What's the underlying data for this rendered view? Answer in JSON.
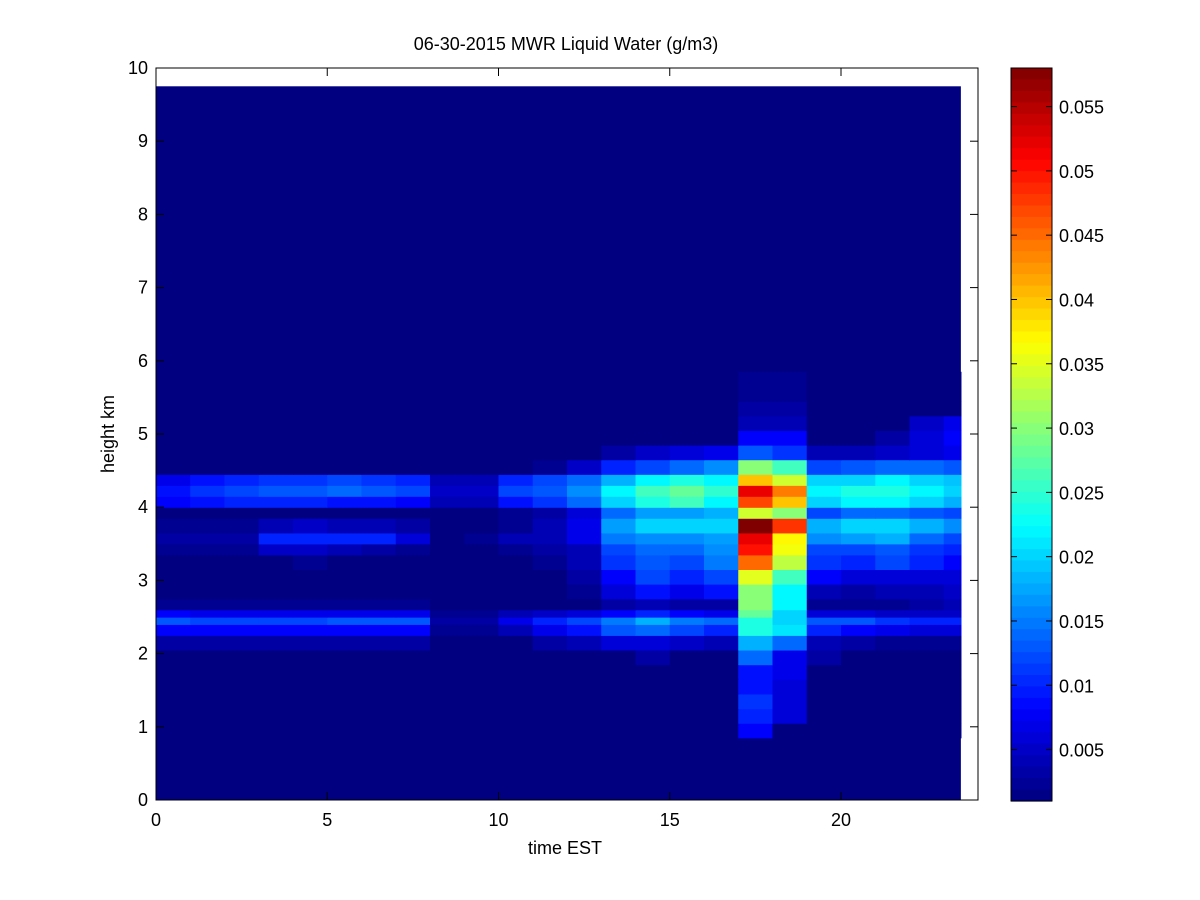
{
  "chart_data": {
    "type": "heatmap",
    "title": "06-30-2015 MWR Liquid Water (g/m3)",
    "xlabel": "time EST",
    "ylabel": "height km",
    "xlim": [
      0,
      24
    ],
    "ylim": [
      0,
      10
    ],
    "xticks": [
      0,
      5,
      10,
      15,
      20
    ],
    "yticks": [
      0,
      1,
      2,
      3,
      4,
      5,
      6,
      7,
      8,
      9,
      10
    ],
    "data_extent": {
      "x": [
        0,
        23.5
      ],
      "y": [
        0,
        9.75
      ]
    },
    "colorbar": {
      "colormap": "jet",
      "range": [
        0.001,
        0.058
      ],
      "ticks": [
        "0.005",
        "0.01",
        "0.015",
        "0.02",
        "0.025",
        "0.03",
        "0.035",
        "0.04",
        "0.045",
        "0.05",
        "0.055"
      ]
    },
    "background_value": 0.001,
    "x": [
      0.5,
      1.5,
      2.5,
      3.5,
      4.5,
      5.5,
      6.5,
      7.5,
      8.5,
      9.5,
      10.5,
      11.5,
      12.5,
      13.5,
      14.5,
      15.5,
      16.5,
      17.5,
      18.5,
      19.5,
      20.5,
      21.5,
      22.5,
      23.5
    ],
    "y": [
      0.95,
      1.15,
      1.35,
      1.55,
      1.75,
      1.95,
      2.15,
      2.35,
      2.45,
      2.55,
      2.65,
      2.85,
      3.05,
      3.25,
      3.45,
      3.55,
      3.75,
      3.95,
      4.05,
      4.25,
      4.35,
      4.55,
      4.75,
      4.95,
      5.15,
      5.35,
      5.55,
      5.75
    ],
    "z": [
      [
        0.001,
        0.001,
        0.001,
        0.001,
        0.001,
        0.001,
        0.001,
        0.001,
        0.001,
        0.001,
        0.001,
        0.001,
        0.001,
        0.001,
        0.001,
        0.001,
        0.001,
        0.008,
        0.001,
        0.001,
        0.001,
        0.001,
        0.001,
        0.001
      ],
      [
        0.001,
        0.001,
        0.001,
        0.001,
        0.001,
        0.001,
        0.001,
        0.001,
        0.001,
        0.001,
        0.001,
        0.001,
        0.001,
        0.001,
        0.001,
        0.001,
        0.001,
        0.01,
        0.006,
        0.001,
        0.001,
        0.001,
        0.001,
        0.001
      ],
      [
        0.001,
        0.001,
        0.001,
        0.001,
        0.001,
        0.001,
        0.001,
        0.001,
        0.001,
        0.001,
        0.001,
        0.001,
        0.001,
        0.001,
        0.001,
        0.001,
        0.001,
        0.011,
        0.006,
        0.001,
        0.001,
        0.001,
        0.001,
        0.001
      ],
      [
        0.001,
        0.001,
        0.001,
        0.001,
        0.001,
        0.001,
        0.001,
        0.001,
        0.001,
        0.001,
        0.001,
        0.001,
        0.001,
        0.001,
        0.001,
        0.001,
        0.001,
        0.009,
        0.006,
        0.001,
        0.001,
        0.001,
        0.001,
        0.001
      ],
      [
        0.001,
        0.001,
        0.001,
        0.001,
        0.001,
        0.001,
        0.001,
        0.001,
        0.001,
        0.001,
        0.001,
        0.001,
        0.001,
        0.001,
        0.001,
        0.001,
        0.001,
        0.009,
        0.007,
        0.001,
        0.001,
        0.001,
        0.001,
        0.001
      ],
      [
        0.001,
        0.001,
        0.001,
        0.001,
        0.001,
        0.001,
        0.001,
        0.001,
        0.001,
        0.001,
        0.001,
        0.001,
        0.001,
        0.001,
        0.003,
        0.001,
        0.001,
        0.014,
        0.007,
        0.003,
        0.001,
        0.001,
        0.001,
        0.001
      ],
      [
        0.003,
        0.003,
        0.003,
        0.003,
        0.003,
        0.003,
        0.003,
        0.003,
        0.001,
        0.001,
        0.001,
        0.003,
        0.004,
        0.006,
        0.006,
        0.005,
        0.004,
        0.018,
        0.014,
        0.004,
        0.003,
        0.002,
        0.002,
        0.002
      ],
      [
        0.008,
        0.008,
        0.008,
        0.008,
        0.008,
        0.008,
        0.008,
        0.008,
        0.002,
        0.002,
        0.004,
        0.007,
        0.009,
        0.013,
        0.014,
        0.012,
        0.01,
        0.024,
        0.021,
        0.01,
        0.008,
        0.007,
        0.006,
        0.006
      ],
      [
        0.013,
        0.012,
        0.012,
        0.012,
        0.012,
        0.013,
        0.013,
        0.013,
        0.003,
        0.003,
        0.007,
        0.01,
        0.012,
        0.015,
        0.018,
        0.015,
        0.014,
        0.024,
        0.02,
        0.013,
        0.013,
        0.011,
        0.01,
        0.01
      ],
      [
        0.008,
        0.007,
        0.007,
        0.007,
        0.007,
        0.007,
        0.007,
        0.007,
        0.002,
        0.002,
        0.004,
        0.005,
        0.006,
        0.008,
        0.01,
        0.008,
        0.007,
        0.028,
        0.02,
        0.006,
        0.006,
        0.005,
        0.005,
        0.005
      ],
      [
        0.002,
        0.002,
        0.002,
        0.002,
        0.002,
        0.002,
        0.002,
        0.002,
        0.001,
        0.001,
        0.001,
        0.001,
        0.001,
        0.003,
        0.004,
        0.003,
        0.003,
        0.03,
        0.022,
        0.002,
        0.002,
        0.002,
        0.003,
        0.004
      ],
      [
        0.001,
        0.001,
        0.001,
        0.001,
        0.001,
        0.001,
        0.001,
        0.001,
        0.001,
        0.001,
        0.001,
        0.001,
        0.002,
        0.006,
        0.009,
        0.007,
        0.009,
        0.03,
        0.022,
        0.004,
        0.003,
        0.004,
        0.004,
        0.005
      ],
      [
        0.001,
        0.001,
        0.001,
        0.001,
        0.001,
        0.001,
        0.001,
        0.001,
        0.001,
        0.001,
        0.001,
        0.001,
        0.003,
        0.008,
        0.012,
        0.01,
        0.012,
        0.035,
        0.026,
        0.008,
        0.006,
        0.006,
        0.006,
        0.006
      ],
      [
        0.001,
        0.001,
        0.001,
        0.001,
        0.002,
        0.001,
        0.001,
        0.001,
        0.001,
        0.001,
        0.001,
        0.002,
        0.004,
        0.011,
        0.013,
        0.012,
        0.015,
        0.045,
        0.033,
        0.011,
        0.01,
        0.012,
        0.01,
        0.008
      ],
      [
        0.002,
        0.002,
        0.002,
        0.005,
        0.005,
        0.004,
        0.003,
        0.002,
        0.001,
        0.001,
        0.002,
        0.003,
        0.004,
        0.012,
        0.014,
        0.014,
        0.016,
        0.05,
        0.036,
        0.012,
        0.012,
        0.013,
        0.011,
        0.01
      ],
      [
        0.003,
        0.003,
        0.003,
        0.01,
        0.01,
        0.01,
        0.01,
        0.006,
        0.001,
        0.002,
        0.004,
        0.004,
        0.007,
        0.015,
        0.016,
        0.016,
        0.017,
        0.052,
        0.037,
        0.016,
        0.017,
        0.018,
        0.014,
        0.012
      ],
      [
        0.002,
        0.002,
        0.002,
        0.004,
        0.005,
        0.004,
        0.004,
        0.003,
        0.001,
        0.001,
        0.002,
        0.004,
        0.007,
        0.017,
        0.02,
        0.02,
        0.02,
        0.058,
        0.048,
        0.018,
        0.02,
        0.02,
        0.018,
        0.016
      ],
      [
        0.001,
        0.001,
        0.001,
        0.001,
        0.001,
        0.001,
        0.001,
        0.001,
        0.001,
        0.001,
        0.002,
        0.003,
        0.006,
        0.014,
        0.017,
        0.017,
        0.018,
        0.034,
        0.03,
        0.012,
        0.014,
        0.014,
        0.013,
        0.012
      ],
      [
        0.008,
        0.009,
        0.01,
        0.01,
        0.01,
        0.009,
        0.009,
        0.008,
        0.004,
        0.004,
        0.009,
        0.011,
        0.014,
        0.02,
        0.024,
        0.026,
        0.022,
        0.047,
        0.04,
        0.02,
        0.022,
        0.022,
        0.02,
        0.018
      ],
      [
        0.009,
        0.011,
        0.012,
        0.013,
        0.013,
        0.014,
        0.013,
        0.012,
        0.005,
        0.005,
        0.012,
        0.013,
        0.016,
        0.022,
        0.026,
        0.028,
        0.025,
        0.052,
        0.044,
        0.022,
        0.024,
        0.024,
        0.022,
        0.02
      ],
      [
        0.007,
        0.009,
        0.01,
        0.011,
        0.011,
        0.012,
        0.011,
        0.01,
        0.004,
        0.004,
        0.01,
        0.012,
        0.014,
        0.018,
        0.022,
        0.024,
        0.022,
        0.04,
        0.034,
        0.02,
        0.02,
        0.022,
        0.02,
        0.019
      ],
      [
        0.001,
        0.001,
        0.001,
        0.001,
        0.001,
        0.001,
        0.001,
        0.001,
        0.001,
        0.001,
        0.001,
        0.002,
        0.005,
        0.01,
        0.012,
        0.014,
        0.016,
        0.03,
        0.026,
        0.012,
        0.013,
        0.014,
        0.014,
        0.013
      ],
      [
        0.001,
        0.001,
        0.001,
        0.001,
        0.001,
        0.001,
        0.001,
        0.001,
        0.001,
        0.001,
        0.001,
        0.001,
        0.001,
        0.003,
        0.005,
        0.006,
        0.007,
        0.013,
        0.011,
        0.004,
        0.004,
        0.005,
        0.006,
        0.007
      ],
      [
        0.001,
        0.001,
        0.001,
        0.001,
        0.001,
        0.001,
        0.001,
        0.001,
        0.001,
        0.001,
        0.001,
        0.001,
        0.001,
        0.001,
        0.001,
        0.001,
        0.001,
        0.008,
        0.008,
        0.001,
        0.001,
        0.003,
        0.006,
        0.008
      ],
      [
        0.001,
        0.001,
        0.001,
        0.001,
        0.001,
        0.001,
        0.001,
        0.001,
        0.001,
        0.001,
        0.001,
        0.001,
        0.001,
        0.001,
        0.001,
        0.001,
        0.001,
        0.004,
        0.004,
        0.001,
        0.001,
        0.001,
        0.005,
        0.007
      ],
      [
        0.001,
        0.001,
        0.001,
        0.001,
        0.001,
        0.001,
        0.001,
        0.001,
        0.001,
        0.001,
        0.001,
        0.001,
        0.001,
        0.001,
        0.001,
        0.001,
        0.001,
        0.003,
        0.003,
        0.001,
        0.001,
        0.001,
        0.001,
        0.001
      ],
      [
        0.001,
        0.001,
        0.001,
        0.001,
        0.001,
        0.001,
        0.001,
        0.001,
        0.001,
        0.001,
        0.001,
        0.001,
        0.001,
        0.001,
        0.001,
        0.001,
        0.001,
        0.002,
        0.002,
        0.001,
        0.001,
        0.001,
        0.001,
        0.001
      ],
      [
        0.001,
        0.001,
        0.001,
        0.001,
        0.001,
        0.001,
        0.001,
        0.001,
        0.001,
        0.001,
        0.001,
        0.001,
        0.001,
        0.001,
        0.001,
        0.001,
        0.001,
        0.002,
        0.002,
        0.001,
        0.001,
        0.001,
        0.001,
        0.001
      ]
    ]
  }
}
